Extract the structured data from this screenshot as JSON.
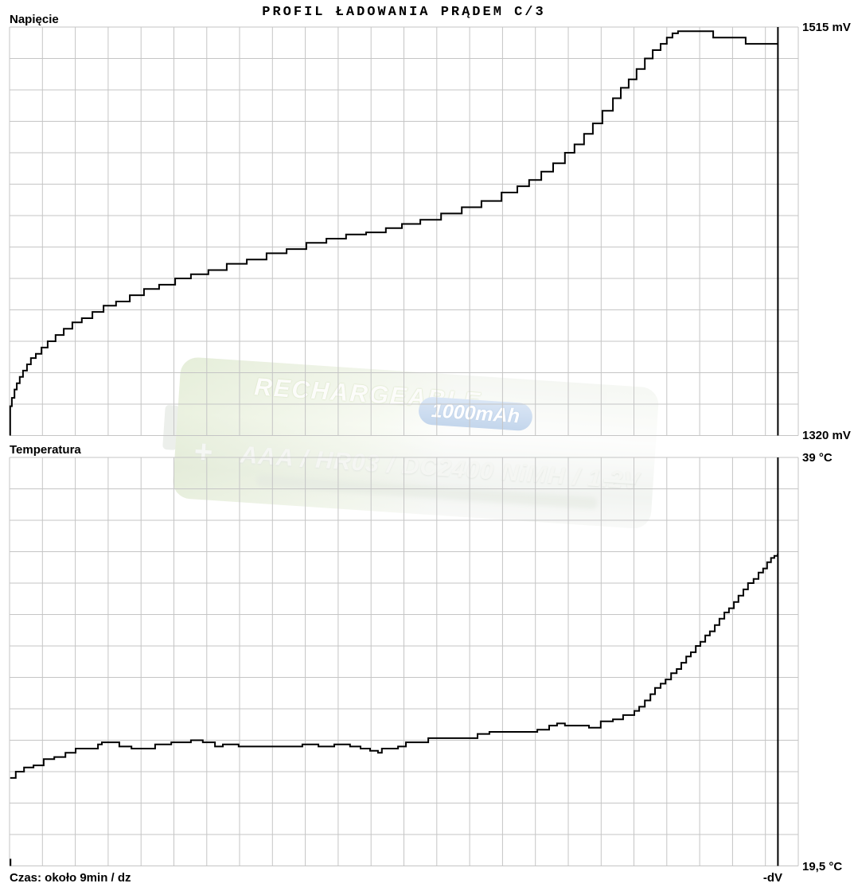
{
  "title": "PROFIL ŁADOWANIA PRĄDEM C/3",
  "footer": {
    "time_label": "Czas: około 9min / dz",
    "dv_label": "-dV"
  },
  "watermark": {
    "line1": "RECHARGEABLE",
    "capacity": "1000mAh",
    "plus": "+",
    "line2": "AAA / HR03 / DC2400 NiMH / 1.2V",
    "minus": "—"
  },
  "colors": {
    "grid": "#c5c5c5",
    "curve": "#000000",
    "background": "#ffffff"
  },
  "chart_data": [
    {
      "type": "line",
      "name": "voltage",
      "title": "Napięcie",
      "y_unit": "mV",
      "y_top_label": "1515 mV",
      "y_bottom_label": "1320 mV",
      "ylim": [
        1320,
        1515
      ],
      "x_unit": "grid division (≈ 9 min each)",
      "xlim": [
        0,
        24
      ],
      "grid": true,
      "legend": "none",
      "marker": {
        "x_div": 23.38
      },
      "series": [
        {
          "name": "Napięcie",
          "points": [
            [
              0.02,
              1320
            ],
            [
              0.02,
              1334
            ],
            [
              0.07,
              1338
            ],
            [
              0.15,
              1342
            ],
            [
              0.22,
              1345
            ],
            [
              0.31,
              1348
            ],
            [
              0.41,
              1351
            ],
            [
              0.53,
              1354
            ],
            [
              0.65,
              1357
            ],
            [
              0.8,
              1359
            ],
            [
              0.97,
              1362
            ],
            [
              1.16,
              1365
            ],
            [
              1.4,
              1368
            ],
            [
              1.65,
              1371
            ],
            [
              1.91,
              1374
            ],
            [
              2.2,
              1376
            ],
            [
              2.52,
              1379
            ],
            [
              2.86,
              1382
            ],
            [
              3.24,
              1384
            ],
            [
              3.66,
              1387
            ],
            [
              4.09,
              1390
            ],
            [
              4.55,
              1392
            ],
            [
              5.04,
              1395
            ],
            [
              5.52,
              1397
            ],
            [
              6.05,
              1399
            ],
            [
              6.61,
              1402
            ],
            [
              7.22,
              1404
            ],
            [
              7.82,
              1407
            ],
            [
              8.43,
              1409
            ],
            [
              9.03,
              1412
            ],
            [
              9.64,
              1414
            ],
            [
              10.24,
              1416
            ],
            [
              10.85,
              1417
            ],
            [
              11.45,
              1419
            ],
            [
              11.94,
              1421
            ],
            [
              12.5,
              1423
            ],
            [
              13.13,
              1426
            ],
            [
              13.76,
              1429
            ],
            [
              14.36,
              1432
            ],
            [
              14.97,
              1436
            ],
            [
              15.45,
              1439
            ],
            [
              15.81,
              1442
            ],
            [
              16.18,
              1446
            ],
            [
              16.54,
              1450
            ],
            [
              16.9,
              1455
            ],
            [
              17.19,
              1459
            ],
            [
              17.48,
              1464
            ],
            [
              17.75,
              1469
            ],
            [
              18.04,
              1475
            ],
            [
              18.36,
              1481
            ],
            [
              18.6,
              1486
            ],
            [
              18.84,
              1490
            ],
            [
              19.08,
              1495
            ],
            [
              19.33,
              1500
            ],
            [
              19.57,
              1504
            ],
            [
              19.81,
              1507
            ],
            [
              20.0,
              1510
            ],
            [
              20.17,
              1512
            ],
            [
              20.34,
              1513
            ],
            [
              21.26,
              1513
            ],
            [
              21.41,
              1510
            ],
            [
              22.23,
              1510
            ],
            [
              22.4,
              1507
            ],
            [
              23.37,
              1507
            ]
          ]
        }
      ]
    },
    {
      "type": "line",
      "name": "temperature",
      "title": "Temperatura",
      "y_unit": "°C",
      "y_top_label": "39 °C",
      "y_bottom_label": "19,5 °C",
      "ylim": [
        19.5,
        39
      ],
      "x_unit": "grid division (≈ 9 min each)",
      "xlim": [
        0,
        24
      ],
      "grid": true,
      "legend": "none",
      "marker": {
        "x_div": 23.38
      },
      "origin_tick_x_div": 0.03,
      "series": [
        {
          "name": "Temperatura",
          "points": [
            [
              0.02,
              23.7
            ],
            [
              0.19,
              24.0
            ],
            [
              0.44,
              24.2
            ],
            [
              0.73,
              24.3
            ],
            [
              1.04,
              24.6
            ],
            [
              1.36,
              24.7
            ],
            [
              1.7,
              24.9
            ],
            [
              2.01,
              25.1
            ],
            [
              2.37,
              25.1
            ],
            [
              2.69,
              25.3
            ],
            [
              2.81,
              25.4
            ],
            [
              3.22,
              25.4
            ],
            [
              3.34,
              25.2
            ],
            [
              3.71,
              25.1
            ],
            [
              4.07,
              25.1
            ],
            [
              4.43,
              25.3
            ],
            [
              4.92,
              25.4
            ],
            [
              5.52,
              25.5
            ],
            [
              5.88,
              25.4
            ],
            [
              6.25,
              25.2
            ],
            [
              6.49,
              25.3
            ],
            [
              6.97,
              25.2
            ],
            [
              7.46,
              25.2
            ],
            [
              7.94,
              25.2
            ],
            [
              8.43,
              25.2
            ],
            [
              8.91,
              25.3
            ],
            [
              9.4,
              25.2
            ],
            [
              9.88,
              25.3
            ],
            [
              10.36,
              25.2
            ],
            [
              10.68,
              25.1
            ],
            [
              10.97,
              25.0
            ],
            [
              11.21,
              24.9
            ],
            [
              11.33,
              25.1
            ],
            [
              11.82,
              25.2
            ],
            [
              12.06,
              25.4
            ],
            [
              12.3,
              25.4
            ],
            [
              12.74,
              25.6
            ],
            [
              13.15,
              25.6
            ],
            [
              13.51,
              25.6
            ],
            [
              13.83,
              25.6
            ],
            [
              14.24,
              25.8
            ],
            [
              14.6,
              25.9
            ],
            [
              14.97,
              25.9
            ],
            [
              15.33,
              25.9
            ],
            [
              15.69,
              25.9
            ],
            [
              16.06,
              26.0
            ],
            [
              16.42,
              26.2
            ],
            [
              16.66,
              26.3
            ],
            [
              16.9,
              26.2
            ],
            [
              17.27,
              26.2
            ],
            [
              17.63,
              26.1
            ],
            [
              17.99,
              26.4
            ],
            [
              18.36,
              26.5
            ],
            [
              18.67,
              26.7
            ],
            [
              19.01,
              26.9
            ],
            [
              19.16,
              27.1
            ],
            [
              19.33,
              27.4
            ],
            [
              19.5,
              27.7
            ],
            [
              19.64,
              28.0
            ],
            [
              19.81,
              28.2
            ],
            [
              19.96,
              28.4
            ],
            [
              20.13,
              28.7
            ],
            [
              20.3,
              28.9
            ],
            [
              20.44,
              29.2
            ],
            [
              20.59,
              29.5
            ],
            [
              20.73,
              29.7
            ],
            [
              20.88,
              30.0
            ],
            [
              21.02,
              30.2
            ],
            [
              21.17,
              30.5
            ],
            [
              21.31,
              30.7
            ],
            [
              21.46,
              31.0
            ],
            [
              21.6,
              31.3
            ],
            [
              21.75,
              31.6
            ],
            [
              21.89,
              31.8
            ],
            [
              22.04,
              32.1
            ],
            [
              22.18,
              32.4
            ],
            [
              22.33,
              32.7
            ],
            [
              22.47,
              33.0
            ],
            [
              22.64,
              33.2
            ],
            [
              22.79,
              33.5
            ],
            [
              22.93,
              33.7
            ],
            [
              23.05,
              34.0
            ],
            [
              23.17,
              34.2
            ],
            [
              23.27,
              34.3
            ],
            [
              23.37,
              34.4
            ]
          ]
        }
      ]
    }
  ]
}
